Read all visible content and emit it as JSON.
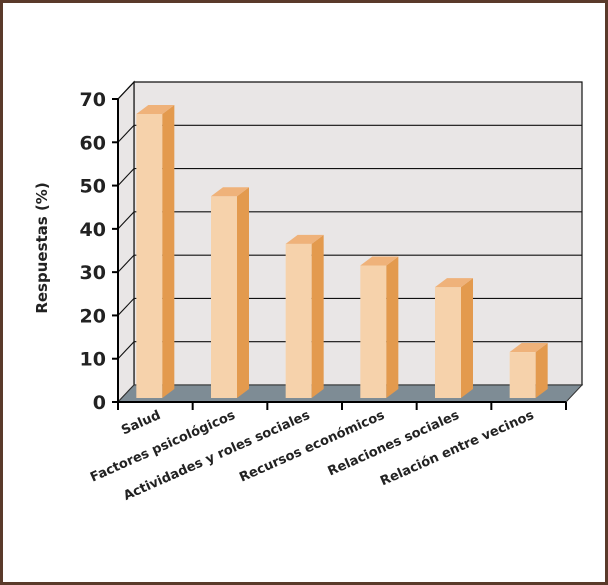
{
  "chart_data": {
    "type": "bar",
    "title": "",
    "xlabel": "",
    "ylabel": "Respuestas (%)",
    "categories": [
      "Salud",
      "Factores psicológicos",
      "Actividades y roles sociales",
      "Recursos económicos",
      "Relaciones sociales",
      "Relación entre vecinos"
    ],
    "values": [
      67,
      48,
      37,
      32,
      27,
      12
    ],
    "ylim": [
      0,
      70
    ],
    "yticks": [
      0,
      10,
      20,
      30,
      40,
      50,
      60,
      70
    ],
    "grid": true,
    "legend": "none",
    "style": "3d-columns"
  },
  "colors": {
    "frame_border": "#5a3a2a",
    "back_wall": "#e9e6e6",
    "floor": "#7e8c95",
    "bar_front": "#f6d2ab",
    "bar_side": "#e39a4e",
    "bar_top": "#efb27a",
    "grid_line": "#111111"
  }
}
